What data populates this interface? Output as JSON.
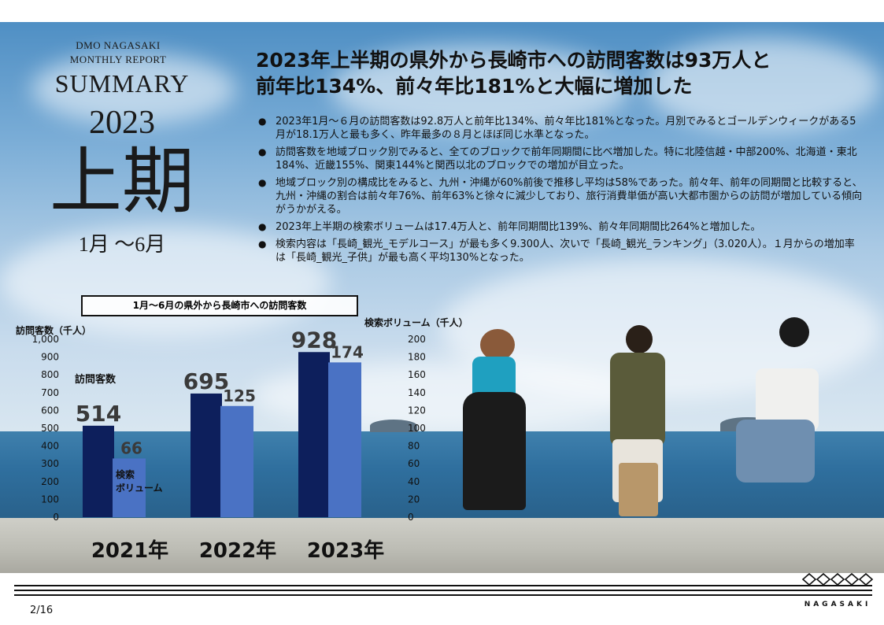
{
  "report": {
    "line1": "DMO NAGASAKI",
    "line2": "MONTHLY  REPORT",
    "summary": "SUMMARY",
    "year": "2023",
    "period_kanji": "上期",
    "months": "1月 〜6月"
  },
  "headline": {
    "line1": "2023年上半期の県外から長崎市への訪問客数は93万人と",
    "line2": "前年比134%、前々年比181%と大幅に増加した"
  },
  "bullets": [
    "2023年1月～６月の訪問客数は92.8万人と前年比134%、前々年比181%となった。月別でみるとゴールデンウィークがある5月が18.1万人と最も多く、昨年最多の８月とほぼ同じ水準となった。",
    "訪問客数を地域ブロック別でみると、全てのブロックで前年同期間に比べ増加した。特に北陸信越・中部200%、北海道・東北184%、近畿155%、関東144%と関西以北のブロックでの増加が目立った。",
    "地域ブロック別の構成比をみると、九州・沖縄が60%前後で推移し平均は58%であった。前々年、前年の同期間と比較すると、九州・沖縄の割合は前々年76%、前年63%と徐々に減少しており、旅行消費単価が高い大都市圏からの訪問が増加している傾向がうかがえる。",
    "2023年上半期の検索ボリュームは17.4万人と、前年同期間比139%、前々年同期間比264%と増加した。",
    "検索内容は「長崎_観光_モデルコース」が最も多く9.300人、次いで「長崎_観光_ランキング」（3.020人）。１月からの増加率は「長崎_観光_子供」が最も高く平均130%となった。"
  ],
  "colors": {
    "visitors_bar": "#0d1f5c",
    "search_bar": "#4a72c4"
  },
  "chart_data": {
    "type": "bar",
    "title": "1月～6月の県外から長崎市への訪問客数",
    "categories": [
      "2021年",
      "2022年",
      "2023年"
    ],
    "series": [
      {
        "name": "訪問客数",
        "axis": "left",
        "values": [
          514,
          695,
          928
        ]
      },
      {
        "name": "検索ボリューム",
        "axis": "right",
        "values": [
          66,
          125,
          174
        ]
      }
    ],
    "ylabel_left": "訪問客数（千人）",
    "ylabel_right": "検索ボリューム（千人）",
    "ylim_left": [
      0,
      1000
    ],
    "ylim_right": [
      0,
      200
    ],
    "yticks_left": [
      "0",
      "100",
      "200",
      "300",
      "400",
      "500",
      "600",
      "700",
      "800",
      "900",
      "1,000"
    ],
    "yticks_right": [
      "0",
      "20",
      "40",
      "60",
      "80",
      "100",
      "120",
      "140",
      "160",
      "180",
      "200"
    ],
    "in_chart_labels": {
      "visitors": "訪問客数",
      "search_line1": "検索",
      "search_line2": "ボリューム"
    },
    "grid": false
  },
  "footer": {
    "page": "2/16",
    "logo_text": "NAGASAKI"
  }
}
